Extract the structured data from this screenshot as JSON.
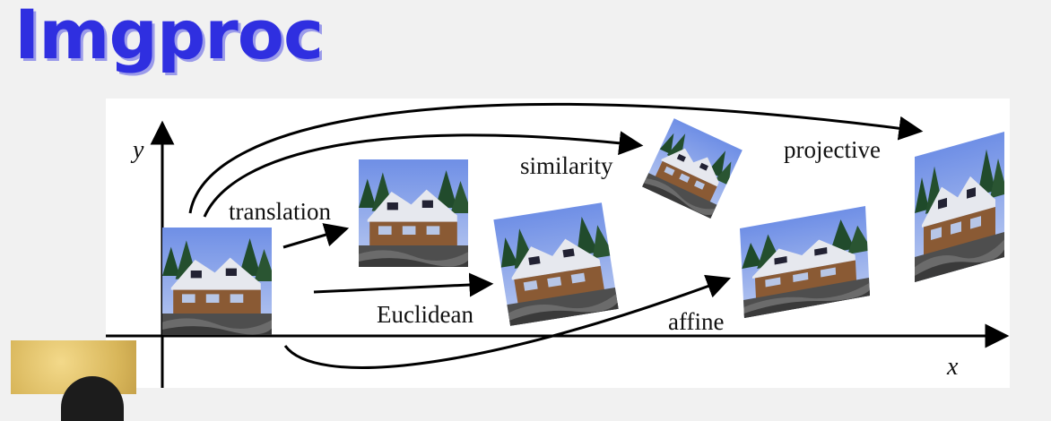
{
  "title": "Imgproc",
  "diagram": {
    "labels": {
      "translation": "translation",
      "euclidean": "Euclidean",
      "similarity": "similarity",
      "affine": "affine",
      "projective": "projective"
    },
    "axes": {
      "x": "x",
      "y": "y"
    }
  }
}
